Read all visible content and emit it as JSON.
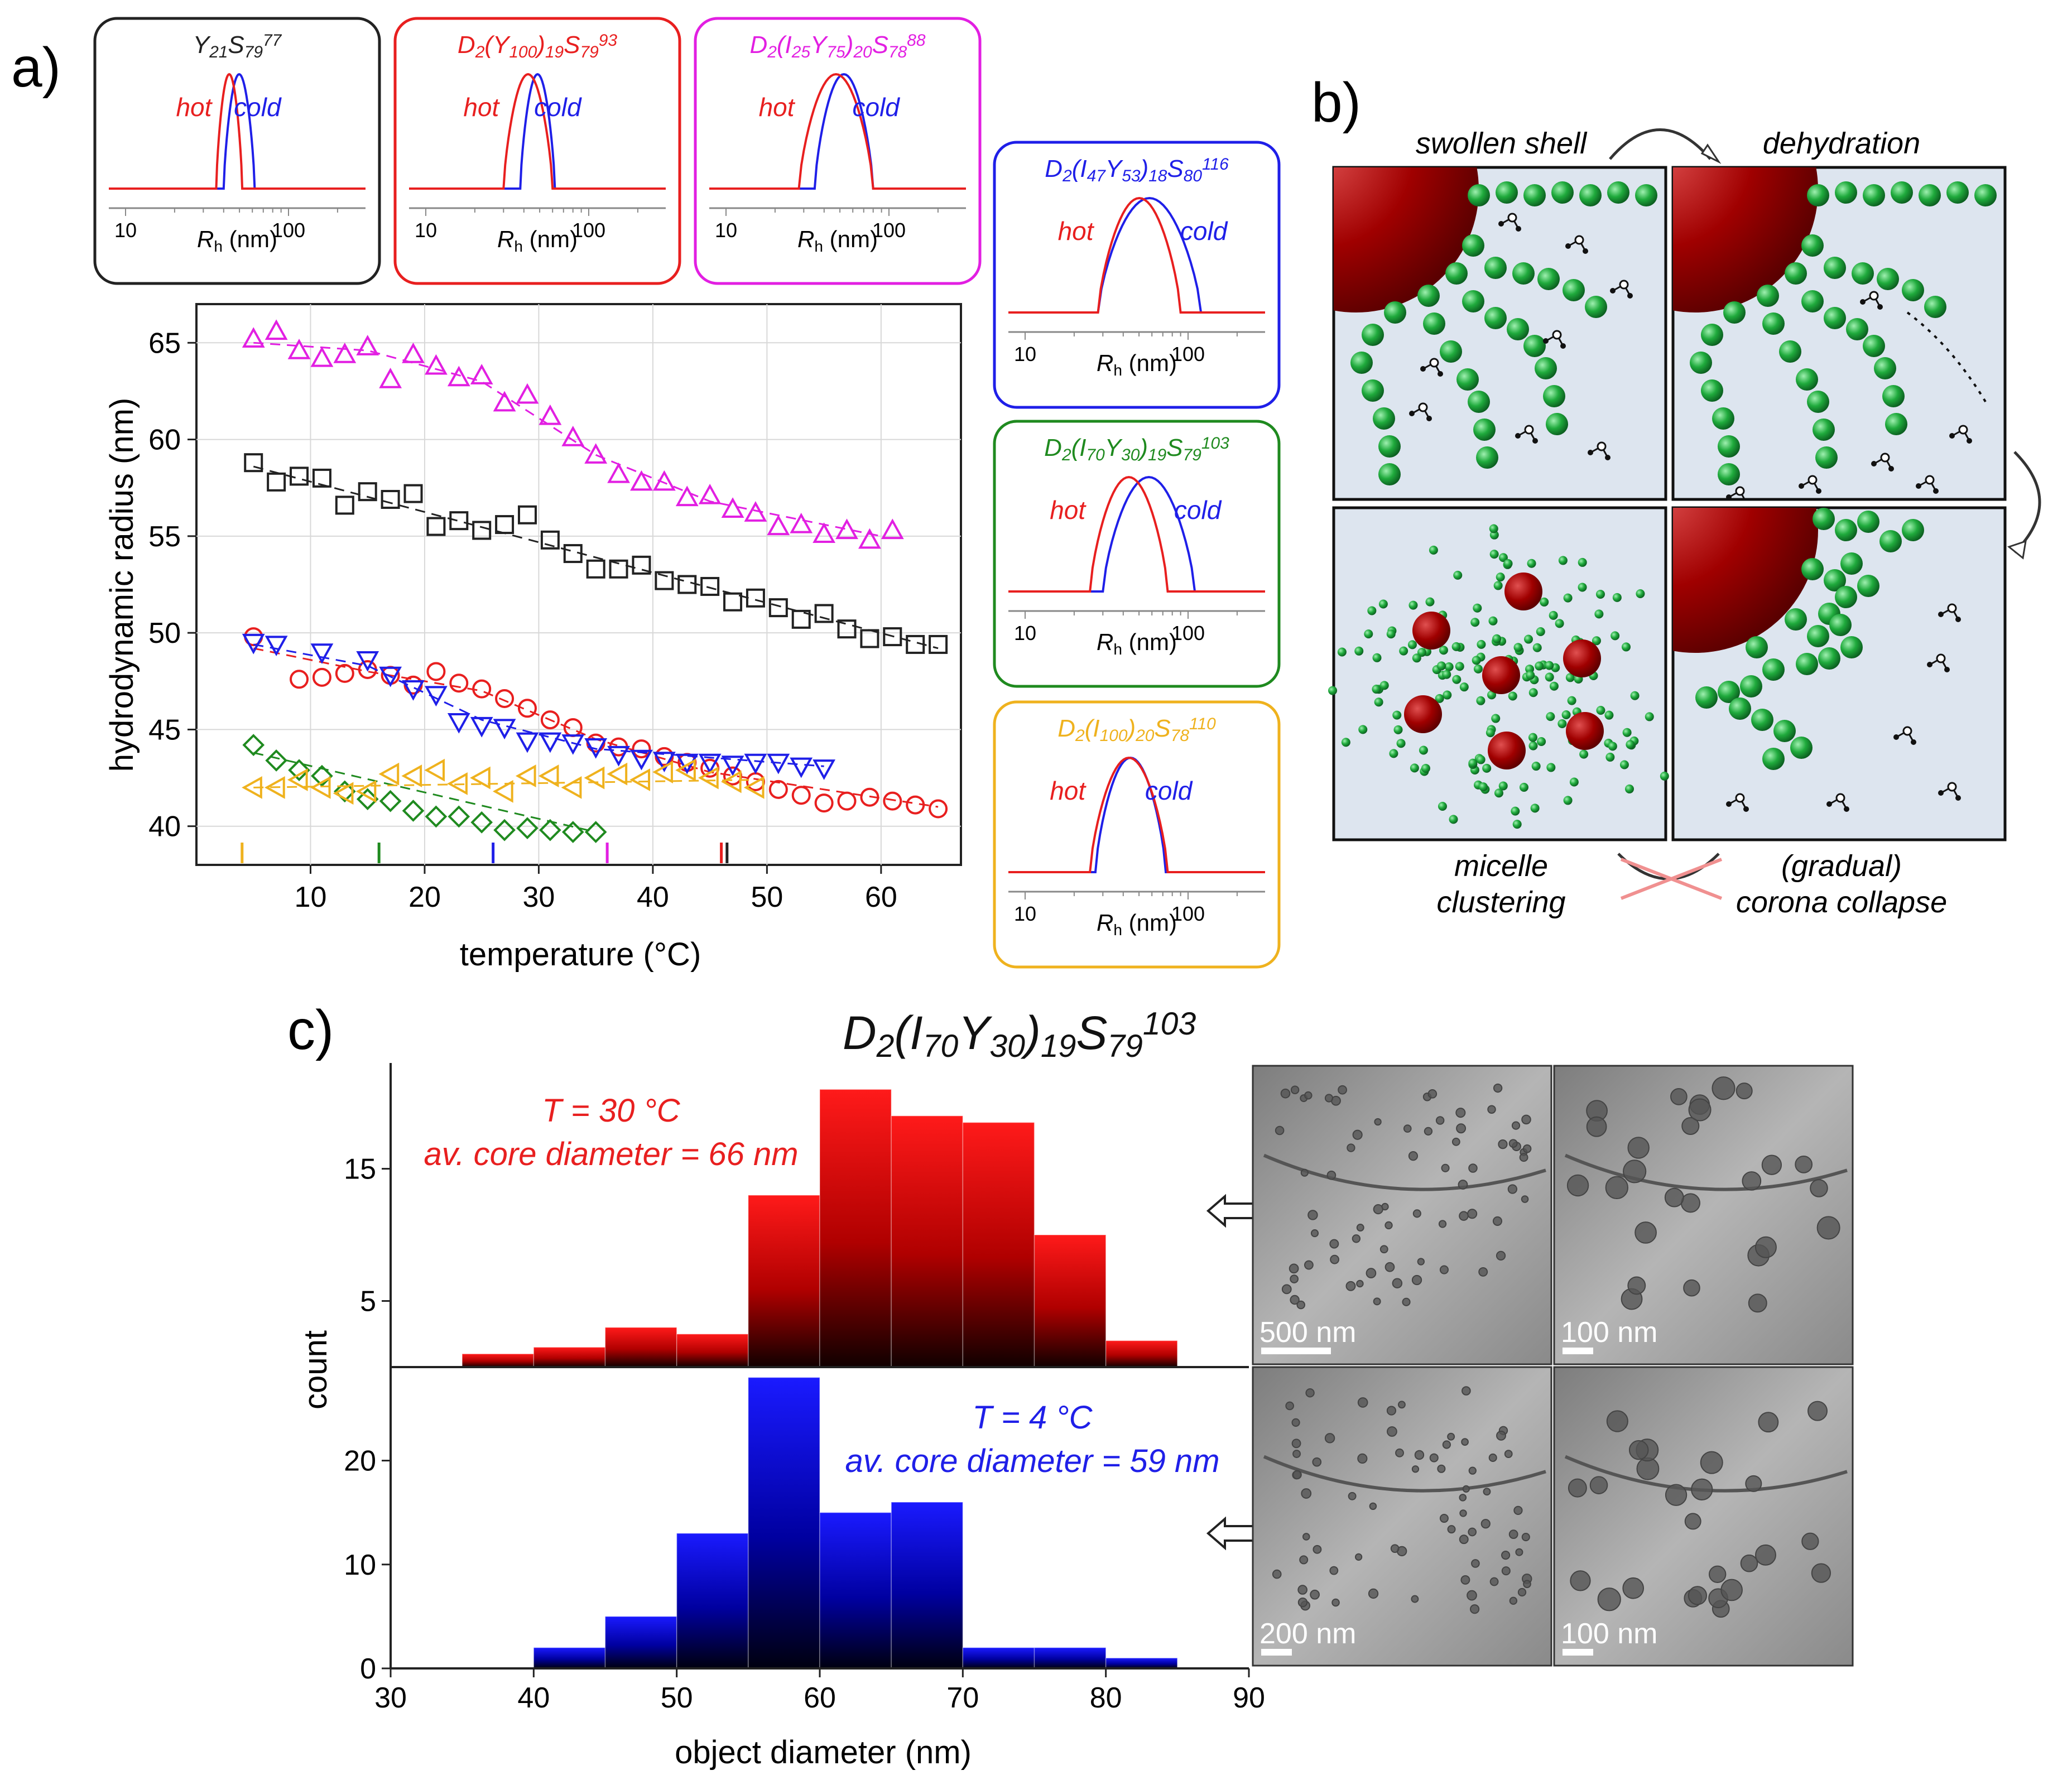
{
  "panel_labels": {
    "a": "a)",
    "b": "b)",
    "c": "c)"
  },
  "colors": {
    "black": "#222222",
    "red": "#e81f1f",
    "blue": "#1f1fe8",
    "magenta": "#e21fe2",
    "green": "#1f8a1f",
    "orange": "#efb21e",
    "panel_bg": "#dde5ef",
    "sphere": "#b00000",
    "bead": "#22aa44"
  },
  "insets": [
    {
      "id": "y21",
      "title": "Y21S79",
      "sup": "77",
      "color": "#222222",
      "hot": "hot",
      "cold": "cold",
      "xtick_lo": "10",
      "xtick_hi": "100",
      "xlabel_R": "R",
      "xlabel_sub": "h",
      "xlabel_unit": "(nm)",
      "hot_range": [
        36,
        52
      ],
      "cold_range": [
        40,
        62
      ]
    },
    {
      "id": "y100",
      "title": "D2(Y100)19S79",
      "sup": "93",
      "color": "#e81f1f",
      "hot": "hot",
      "cold": "cold",
      "xtick_lo": "10",
      "xtick_hi": "100",
      "xlabel_R": "R",
      "xlabel_sub": "h",
      "xlabel_unit": "(nm)",
      "hot_range": [
        30,
        60
      ],
      "cold_range": [
        38,
        62
      ]
    },
    {
      "id": "i25",
      "title": "D2(I25Y75)20S78",
      "sup": "88",
      "color": "#e21fe2",
      "hot": "hot",
      "cold": "cold",
      "xtick_lo": "10",
      "xtick_hi": "100",
      "xlabel_R": "R",
      "xlabel_sub": "h",
      "xlabel_unit": "(nm)",
      "hot_range": [
        28,
        80
      ],
      "cold_range": [
        35,
        80
      ]
    },
    {
      "id": "i47",
      "title": "D2(I47Y53)18S80",
      "sup": "116",
      "color": "#1f1fe8",
      "hot": "hot",
      "cold": "cold",
      "xtick_lo": "10",
      "xtick_hi": "100",
      "xlabel_R": "R",
      "xlabel_sub": "h",
      "xlabel_unit": "(nm)",
      "hot_range": [
        28,
        90
      ],
      "cold_range": [
        28,
        120
      ]
    },
    {
      "id": "i70",
      "title": "D2(I70Y30)19S79",
      "sup": "103",
      "color": "#1f8a1f",
      "hot": "hot",
      "cold": "cold",
      "xtick_lo": "10",
      "xtick_hi": "100",
      "xlabel_R": "R",
      "xlabel_sub": "h",
      "xlabel_unit": "(nm)",
      "hot_range": [
        25,
        75
      ],
      "cold_range": [
        30,
        110
      ]
    },
    {
      "id": "i100",
      "title": "D2(I100)20S78",
      "sup": "110",
      "color": "#efb21e",
      "hot": "hot",
      "cold": "cold",
      "xtick_lo": "10",
      "xtick_hi": "100",
      "xlabel_R": "R",
      "xlabel_sub": "h",
      "xlabel_unit": "(nm)",
      "hot_range": [
        25,
        75
      ],
      "cold_range": [
        27,
        73
      ]
    }
  ],
  "schematic": {
    "swollen_shell": "swollen shell",
    "dehydration": "dehydration",
    "micelle_clustering_1": "micelle",
    "micelle_clustering_2": "clustering",
    "corona_collapse_1": "(gradual)",
    "corona_collapse_2": "corona collapse"
  },
  "panel_c": {
    "title": "D2(I70Y30)19S79",
    "title_sup": "103",
    "hot_T": "T = 30 °C",
    "hot_diam": "av. core diameter = 66 nm",
    "cold_T": "T = 4 °C",
    "cold_diam": "av. core diameter = 59 nm",
    "ylabel": "count",
    "xlabel": "object diameter (nm)"
  },
  "tem": [
    {
      "label": "500 nm"
    },
    {
      "label": "100 nm"
    },
    {
      "label": "200 nm"
    },
    {
      "label": "100 nm"
    }
  ],
  "chart_data": [
    {
      "type": "scatter",
      "title": "",
      "xlabel": "temperature (°C)",
      "ylabel": "hydrodynamic radius (nm)",
      "xlim": [
        0,
        67
      ],
      "ylim": [
        38,
        67
      ],
      "xticks": [
        10,
        20,
        30,
        40,
        50,
        60
      ],
      "yticks": [
        40,
        45,
        50,
        55,
        60,
        65
      ],
      "series": [
        {
          "name": "D2(I25Y75)20S78 88",
          "color": "#e21fe2",
          "marker": "triangle-up",
          "x": [
            5,
            7,
            9,
            11,
            13,
            15,
            17,
            19,
            21,
            23,
            25,
            27,
            29,
            31,
            33,
            35,
            37,
            39,
            41,
            43,
            45,
            47,
            49,
            51,
            53,
            55,
            57,
            59,
            61
          ],
          "y": [
            65.2,
            65.6,
            64.6,
            64.2,
            64.4,
            64.8,
            63.1,
            64.4,
            63.8,
            63.2,
            63.3,
            61.9,
            62.3,
            61.2,
            60.1,
            59.2,
            58.2,
            57.8,
            57.8,
            57.0,
            57.1,
            56.4,
            56.2,
            55.5,
            55.6,
            55.1,
            55.3,
            54.8,
            55.3
          ],
          "fit_x": [
            5,
            15,
            25,
            35,
            45,
            60
          ],
          "fit_y": [
            65.0,
            64.6,
            63.0,
            59.2,
            56.8,
            55.0
          ]
        },
        {
          "name": "Y21S79 77",
          "color": "#222222",
          "marker": "square",
          "x": [
            5,
            7,
            9,
            11,
            13,
            15,
            17,
            19,
            21,
            23,
            25,
            27,
            29,
            31,
            33,
            35,
            37,
            39,
            41,
            43,
            45,
            47,
            49,
            51,
            53,
            55,
            57,
            59,
            61,
            63,
            65
          ],
          "y": [
            58.8,
            57.8,
            58.1,
            58.0,
            56.6,
            57.3,
            56.9,
            57.2,
            55.5,
            55.8,
            55.3,
            55.6,
            56.1,
            54.8,
            54.1,
            53.3,
            53.3,
            53.5,
            52.7,
            52.5,
            52.4,
            51.6,
            51.8,
            51.3,
            50.7,
            51.0,
            50.2,
            49.7,
            49.8,
            49.4,
            49.4
          ],
          "fit_x": [
            5,
            65
          ],
          "fit_y": [
            58.6,
            49.2
          ]
        },
        {
          "name": "D2(Y100)19S79 93",
          "color": "#e81f1f",
          "marker": "circle",
          "x": [
            5,
            9,
            11,
            13,
            15,
            17,
            19,
            21,
            23,
            25,
            27,
            29,
            31,
            33,
            35,
            37,
            39,
            41,
            43,
            45,
            47,
            49,
            51,
            53,
            55,
            57,
            59,
            61,
            63,
            65
          ],
          "y": [
            49.8,
            47.6,
            47.7,
            47.9,
            48.1,
            47.8,
            47.3,
            48.0,
            47.4,
            47.1,
            46.6,
            46.1,
            45.5,
            45.1,
            44.3,
            44.1,
            44.0,
            43.6,
            43.3,
            43.0,
            42.6,
            42.3,
            41.9,
            41.6,
            41.2,
            41.3,
            41.5,
            41.3,
            41.1,
            40.9
          ],
          "fit_x": [
            5,
            15,
            25,
            35,
            45,
            65
          ],
          "fit_y": [
            49.2,
            48.0,
            47.0,
            44.5,
            42.8,
            41.0
          ]
        },
        {
          "name": "D2(I47Y53)18S80 116",
          "color": "#1f1fe8",
          "marker": "triangle-down",
          "x": [
            5,
            7,
            11,
            15,
            17,
            19,
            21,
            23,
            25,
            27,
            29,
            31,
            33,
            35,
            37,
            39,
            41,
            43,
            45,
            47,
            49,
            51,
            53,
            55
          ],
          "y": [
            49.5,
            49.4,
            49.0,
            48.6,
            47.8,
            47.1,
            46.8,
            45.4,
            45.2,
            45.1,
            44.4,
            44.4,
            44.3,
            44.1,
            43.7,
            43.5,
            43.4,
            43.3,
            43.3,
            43.2,
            43.3,
            43.3,
            43.1,
            43.0
          ],
          "fit_x": [
            5,
            15,
            25,
            35,
            55
          ],
          "fit_y": [
            49.4,
            48.3,
            45.5,
            44.0,
            43.1
          ]
        },
        {
          "name": "D2(I70Y30)19S79 103",
          "color": "#1f8a1f",
          "marker": "diamond",
          "x": [
            5,
            7,
            9,
            11,
            13,
            15,
            17,
            19,
            21,
            23,
            25,
            27,
            29,
            31,
            33,
            35
          ],
          "y": [
            44.2,
            43.4,
            42.9,
            42.6,
            41.8,
            41.4,
            41.3,
            40.8,
            40.5,
            40.5,
            40.2,
            39.8,
            39.9,
            39.8,
            39.7,
            39.7
          ],
          "fit_x": [
            5,
            35
          ],
          "fit_y": [
            43.8,
            39.7
          ]
        },
        {
          "name": "D2(I100)20S78 110",
          "color": "#efb21e",
          "marker": "triangle-left",
          "x": [
            5,
            7,
            9,
            11,
            13,
            15,
            17,
            19,
            21,
            23,
            25,
            27,
            29,
            31,
            33,
            35,
            37,
            39,
            41,
            43,
            45,
            47,
            49
          ],
          "y": [
            42.0,
            42.0,
            42.4,
            42.0,
            41.7,
            41.8,
            42.7,
            42.6,
            42.9,
            42.2,
            42.5,
            41.8,
            42.6,
            42.6,
            42.0,
            42.5,
            42.7,
            42.4,
            42.8,
            42.9,
            42.5,
            42.3,
            42.0
          ],
          "fit_x": [
            5,
            49
          ],
          "fit_y": [
            42.0,
            42.4
          ]
        }
      ],
      "transition_marks": [
        {
          "x": 4,
          "color": "#efb21e"
        },
        {
          "x": 16,
          "color": "#1f8a1f"
        },
        {
          "x": 26,
          "color": "#1f1fe8"
        },
        {
          "x": 36,
          "color": "#e21fe2"
        },
        {
          "x": 46,
          "color": "#e81f1f"
        },
        {
          "x": 46.5,
          "color": "#222222"
        }
      ]
    },
    {
      "type": "bar",
      "title": "T = 30 °C",
      "xlabel": "object diameter (nm)",
      "ylabel": "count",
      "xlim": [
        30,
        90
      ],
      "ylim": [
        0,
        23
      ],
      "yticks": [
        5,
        15
      ],
      "bin_edges": [
        35,
        40,
        45,
        50,
        55,
        60,
        65,
        70,
        75,
        80,
        85
      ],
      "values": [
        1,
        1.5,
        3,
        2.5,
        13,
        21,
        19,
        18.5,
        10,
        2
      ],
      "color": "#e81f1f"
    },
    {
      "type": "bar",
      "title": "T = 4 °C",
      "xlabel": "object diameter (nm)",
      "ylabel": "count",
      "xlim": [
        30,
        90
      ],
      "ylim": [
        0,
        29
      ],
      "yticks": [
        0,
        10,
        20
      ],
      "xticks": [
        30,
        40,
        50,
        60,
        70,
        80,
        90
      ],
      "bin_edges": [
        40,
        45,
        50,
        55,
        60,
        65,
        70,
        75,
        80,
        85
      ],
      "values": [
        2,
        5,
        13,
        28,
        15,
        16,
        2,
        2,
        1
      ],
      "color": "#1f1fe8"
    }
  ]
}
